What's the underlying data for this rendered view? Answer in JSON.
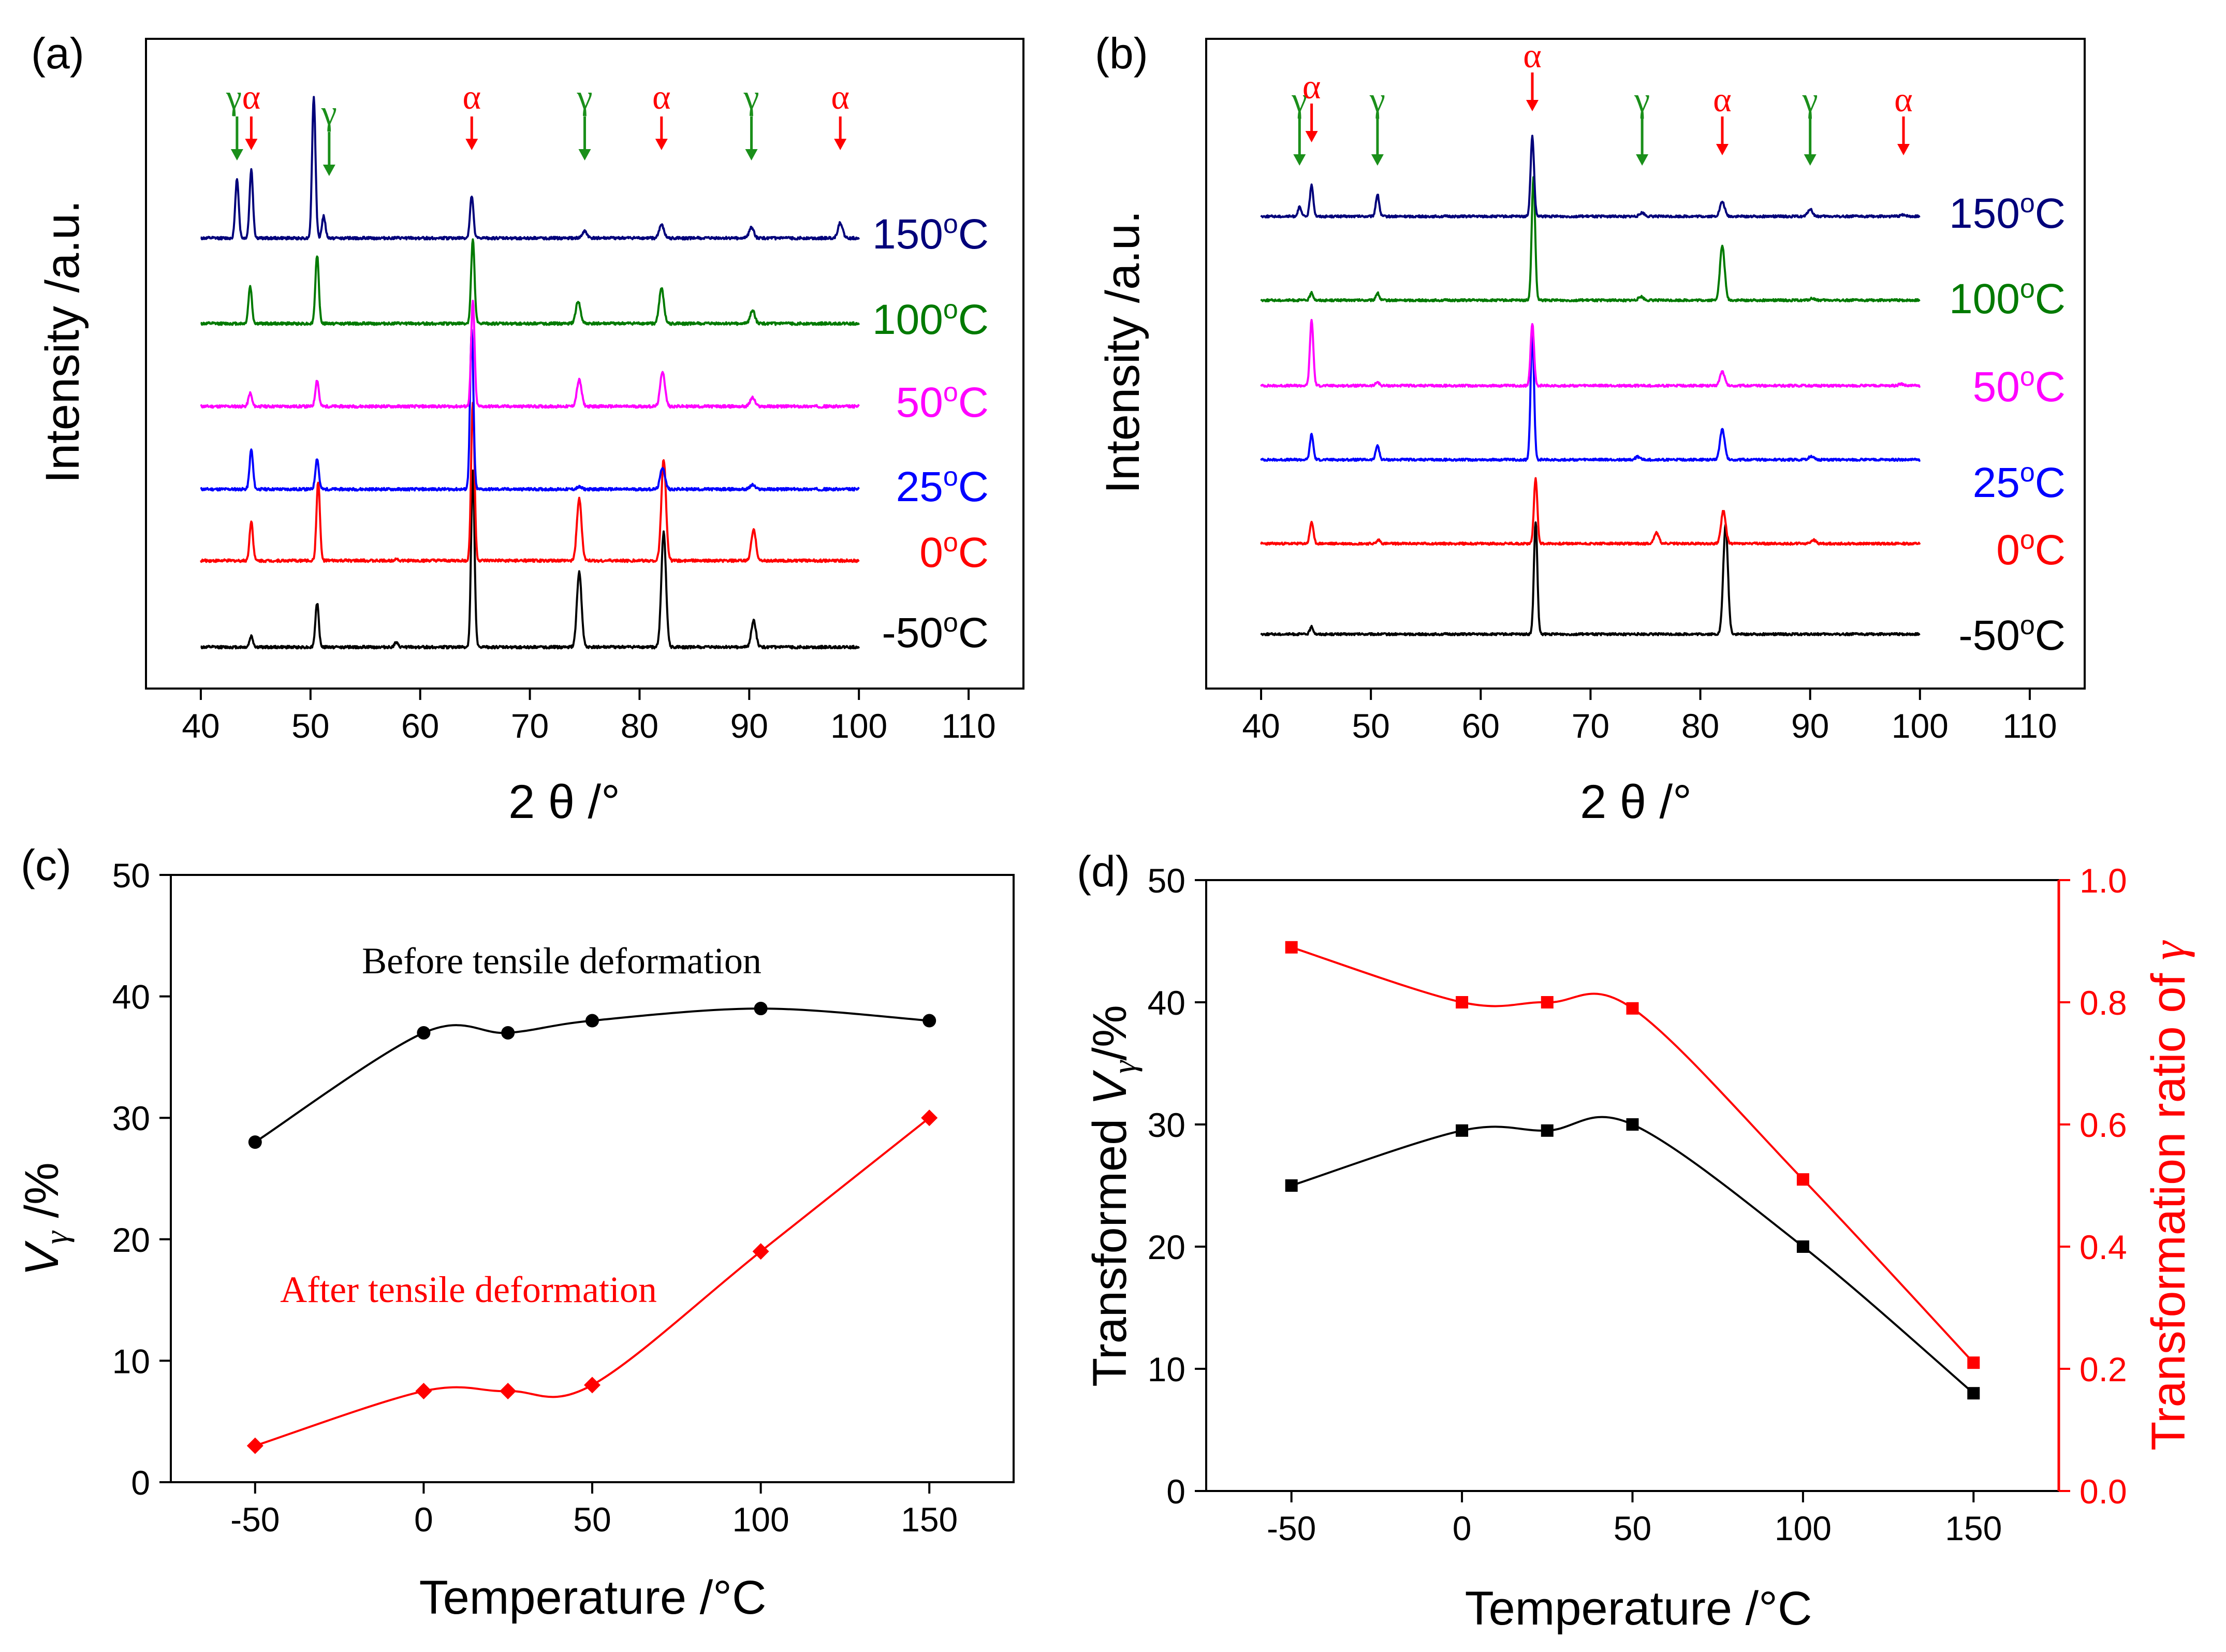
{
  "colors": {
    "black": "#000000",
    "red": "#ff0000",
    "navy": "#00007a",
    "green": "#007a00",
    "magenta": "#ff00ff",
    "blue": "#0000ff",
    "arrow_green": "#1a8f1a",
    "arrow_red": "#ff0000"
  },
  "chart_data": [
    {
      "id": "a",
      "type": "line",
      "panel_label": "(a)",
      "xlabel": "2 θ /°",
      "ylabel": "Intensity /a.u.",
      "xlim": [
        35,
        115
      ],
      "xticks": [
        40,
        50,
        60,
        70,
        80,
        90,
        100,
        110
      ],
      "series": [
        {
          "name": "-50°C",
          "label": "-50",
          "unit": "°C",
          "color": "#000000",
          "peaks": [
            [
              44.6,
              0.25
            ],
            [
              50.6,
              1.0
            ],
            [
              57.8,
              0.1
            ],
            [
              64.8,
              4.0
            ],
            [
              74.5,
              1.7
            ],
            [
              82.2,
              2.6
            ],
            [
              90.4,
              0.6
            ]
          ]
        },
        {
          "name": "0°C",
          "label": "0",
          "unit": "°C",
          "color": "#ff0000",
          "peaks": [
            [
              44.6,
              0.9
            ],
            [
              50.7,
              1.8
            ],
            [
              57.8,
              0.05
            ],
            [
              64.8,
              3.6
            ],
            [
              74.5,
              1.4
            ],
            [
              82.2,
              2.3
            ],
            [
              90.4,
              0.7
            ]
          ]
        },
        {
          "name": "25°C",
          "label": "25",
          "unit": "°C",
          "color": "#0000ff",
          "peaks": [
            [
              44.6,
              0.9
            ],
            [
              50.6,
              0.7
            ],
            [
              64.7,
              3.6
            ],
            [
              74.5,
              0.05
            ],
            [
              82.1,
              0.5
            ],
            [
              90.3,
              0.1
            ]
          ]
        },
        {
          "name": "50°C",
          "label": "50",
          "unit": "°C",
          "color": "#ff00ff",
          "peaks": [
            [
              44.5,
              0.3
            ],
            [
              50.6,
              0.6
            ],
            [
              64.8,
              2.4
            ],
            [
              74.5,
              0.6
            ],
            [
              82.1,
              0.8
            ],
            [
              90.3,
              0.2
            ]
          ]
        },
        {
          "name": "100°C",
          "label": "100",
          "unit": "°C",
          "color": "#007a00",
          "peaks": [
            [
              44.5,
              0.85
            ],
            [
              50.6,
              1.55
            ],
            [
              64.8,
              1.9
            ],
            [
              74.4,
              0.5
            ],
            [
              82.0,
              0.8
            ],
            [
              90.3,
              0.3
            ]
          ]
        },
        {
          "name": "150°C",
          "label": "150",
          "unit": "°C",
          "color": "#00007a",
          "peaks": [
            [
              43.3,
              1.35
            ],
            [
              44.6,
              1.55
            ],
            [
              50.3,
              3.2
            ],
            [
              51.2,
              0.5
            ],
            [
              64.7,
              0.95
            ],
            [
              75.0,
              0.15
            ],
            [
              82.0,
              0.3
            ],
            [
              90.2,
              0.25
            ],
            [
              98.3,
              0.35
            ]
          ]
        }
      ],
      "annotations": [
        {
          "symbol": "γ",
          "x": 43.3,
          "kind": "gamma"
        },
        {
          "symbol": "α",
          "x": 44.6,
          "kind": "alpha"
        },
        {
          "symbol": "γ",
          "x": 51.7,
          "kind": "gamma"
        },
        {
          "symbol": "α",
          "x": 64.7,
          "kind": "alpha"
        },
        {
          "symbol": "γ",
          "x": 75.0,
          "kind": "gamma"
        },
        {
          "symbol": "α",
          "x": 82.0,
          "kind": "alpha"
        },
        {
          "symbol": "γ",
          "x": 90.2,
          "kind": "gamma"
        },
        {
          "symbol": "α",
          "x": 98.3,
          "kind": "alpha"
        }
      ]
    },
    {
      "id": "b",
      "type": "line",
      "panel_label": "(b)",
      "xlabel": "2 θ /°",
      "ylabel": "Intensity /a.u.",
      "xlim": [
        35,
        115
      ],
      "xticks": [
        40,
        50,
        60,
        70,
        80,
        90,
        100,
        110
      ],
      "series": [
        {
          "name": "-50°C",
          "label": "-50",
          "unit": "°C",
          "color": "#000000",
          "peaks": [
            [
              44.6,
              0.2
            ],
            [
              65.0,
              3.1
            ],
            [
              82.3,
              3.0
            ]
          ]
        },
        {
          "name": "0°C",
          "label": "0",
          "unit": "°C",
          "color": "#ff0000",
          "peaks": [
            [
              44.6,
              0.6
            ],
            [
              50.7,
              0.1
            ],
            [
              65.0,
              1.8
            ],
            [
              76.0,
              0.3
            ],
            [
              82.1,
              0.9
            ],
            [
              90.3,
              0.1
            ]
          ]
        },
        {
          "name": "25°C",
          "label": "25",
          "unit": "°C",
          "color": "#0000ff",
          "peaks": [
            [
              44.6,
              0.7
            ],
            [
              50.6,
              0.4
            ],
            [
              64.7,
              3.5
            ],
            [
              74.3,
              0.08
            ],
            [
              82.0,
              0.85
            ],
            [
              90.1,
              0.1
            ]
          ]
        },
        {
          "name": "50°C",
          "label": "50",
          "unit": "°C",
          "color": "#ff00ff",
          "peaks": [
            [
              44.6,
              1.8
            ],
            [
              50.6,
              0.1
            ],
            [
              64.7,
              1.7
            ],
            [
              82.0,
              0.4
            ],
            [
              98.3,
              0.05
            ]
          ]
        },
        {
          "name": "100°C",
          "label": "100",
          "unit": "°C",
          "color": "#007a00",
          "peaks": [
            [
              44.6,
              0.2
            ],
            [
              50.6,
              0.2
            ],
            [
              64.8,
              3.4
            ],
            [
              74.6,
              0.1
            ],
            [
              82.0,
              1.5
            ],
            [
              90.2,
              0.05
            ]
          ]
        },
        {
          "name": "150°C",
          "label": "150",
          "unit": "°C",
          "color": "#00007a",
          "peaks": [
            [
              43.5,
              0.25
            ],
            [
              44.6,
              0.85
            ],
            [
              50.6,
              0.6
            ],
            [
              64.7,
              2.2
            ],
            [
              74.7,
              0.1
            ],
            [
              82.0,
              0.4
            ],
            [
              90.0,
              0.2
            ],
            [
              98.5,
              0.05
            ]
          ]
        }
      ],
      "annotations": [
        {
          "symbol": "γ",
          "x": 43.5,
          "kind": "gamma"
        },
        {
          "symbol": "α",
          "x": 44.6,
          "kind": "alpha"
        },
        {
          "symbol": "γ",
          "x": 50.6,
          "kind": "gamma"
        },
        {
          "symbol": "α",
          "x": 64.7,
          "kind": "alpha"
        },
        {
          "symbol": "γ",
          "x": 74.7,
          "kind": "gamma"
        },
        {
          "symbol": "α",
          "x": 82.0,
          "kind": "alpha"
        },
        {
          "symbol": "γ",
          "x": 90.0,
          "kind": "gamma"
        },
        {
          "symbol": "α",
          "x": 98.5,
          "kind": "alpha"
        }
      ]
    },
    {
      "id": "c",
      "type": "line",
      "panel_label": "(c)",
      "xlabel": "Temperature /°C",
      "ylabel": "Vγ /%",
      "ylabel_main": "V",
      "ylabel_sub": "γ",
      "ylabel_rest": " /%",
      "xlim": [
        -75,
        175
      ],
      "xticks": [
        -50,
        0,
        50,
        100,
        150
      ],
      "ylim": [
        0,
        50
      ],
      "yticks": [
        0,
        10,
        20,
        30,
        40,
        50
      ],
      "series": [
        {
          "name": "Before tensile deformation",
          "color": "#000000",
          "marker": "circle",
          "x": [
            -50,
            0,
            25,
            50,
            100,
            150
          ],
          "y": [
            28,
            37,
            37,
            38,
            39,
            38
          ]
        },
        {
          "name": "After  tensile deformation",
          "color": "#ff0000",
          "marker": "diamond",
          "x": [
            -50,
            0,
            25,
            50,
            100,
            150
          ],
          "y": [
            3,
            7.5,
            7.5,
            8,
            19,
            30
          ]
        }
      ]
    },
    {
      "id": "d",
      "type": "line",
      "panel_label": "(d)",
      "xlabel": "Temperature /°C",
      "ylabel": "Transformed Vγ/%",
      "ylabel_pre": "Transformed ",
      "ylabel_main": "V",
      "ylabel_sub": "γ",
      "ylabel_rest": "/%",
      "ylabel_right": "Transformation ratio of γ",
      "ylabel_right_pre": "Transformation ratio of ",
      "ylabel_right_sym": "γ",
      "xlim": [
        -75,
        175
      ],
      "xticks": [
        -50,
        0,
        50,
        100,
        150
      ],
      "ylim": [
        0,
        50
      ],
      "yticks": [
        0,
        10,
        20,
        30,
        40,
        50
      ],
      "ylim_right": [
        0,
        1.0
      ],
      "yticks_right": [
        "0.0",
        "0.2",
        "0.4",
        "0.6",
        "0.8",
        "1.0"
      ],
      "series": [
        {
          "name": "Transformed Vγ",
          "color": "#000000",
          "marker": "square",
          "axis": "left",
          "x": [
            -50,
            0,
            25,
            50,
            100,
            150
          ],
          "y": [
            25,
            29.5,
            29.5,
            30,
            20,
            8
          ]
        },
        {
          "name": "Transformation ratio of γ",
          "color": "#ff0000",
          "marker": "square",
          "axis": "right",
          "x": [
            -50,
            0,
            25,
            50,
            100,
            150
          ],
          "y": [
            0.89,
            0.8,
            0.8,
            0.79,
            0.51,
            0.21
          ]
        }
      ]
    }
  ]
}
